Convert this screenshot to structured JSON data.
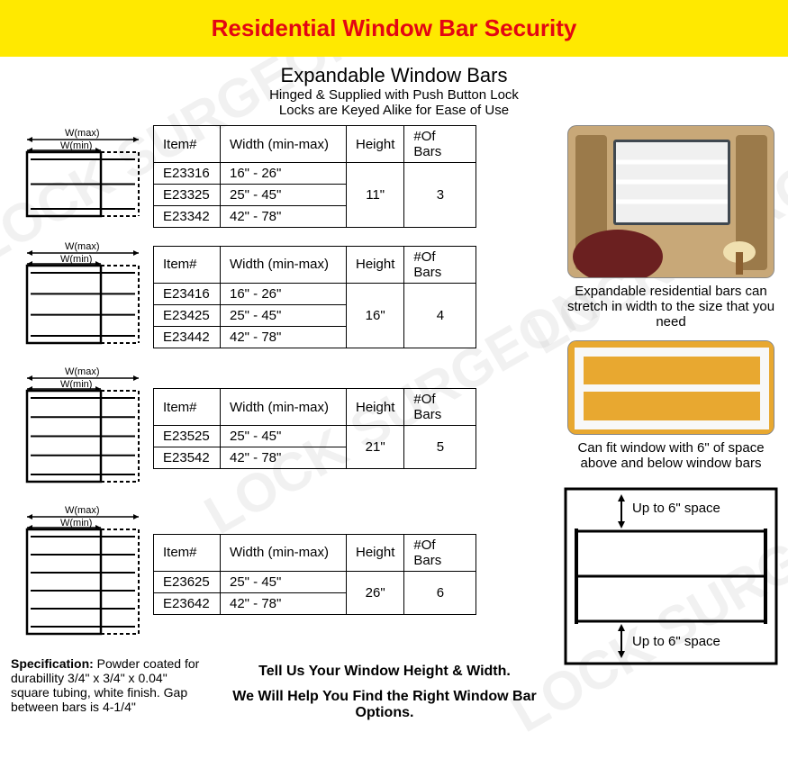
{
  "header": {
    "title": "Residential Window Bar Security"
  },
  "subtitle": {
    "main": "Expandable Window Bars",
    "line1": "Hinged & Supplied with Push Button Lock",
    "line2": "Locks are Keyed Alike for Ease of Use"
  },
  "table_headers": {
    "item": "Item#",
    "width": "Width (min-max)",
    "height": "Height",
    "bars": "#Of Bars"
  },
  "diagrams": {
    "wmax_label": "W(max)",
    "wmin_label": "W(min)",
    "stroke_color": "#000000",
    "stroke_width": 2
  },
  "products": [
    {
      "bars": 3,
      "height": "11\"",
      "rows": [
        {
          "item": "E23316",
          "width": "16\" - 26\""
        },
        {
          "item": "E23325",
          "width": "25\" - 45\""
        },
        {
          "item": "E23342",
          "width": "42\" - 78\""
        }
      ]
    },
    {
      "bars": 4,
      "height": "16\"",
      "rows": [
        {
          "item": "E23416",
          "width": "16\" - 26\""
        },
        {
          "item": "E23425",
          "width": "25\" - 45\""
        },
        {
          "item": "E23442",
          "width": "42\" - 78\""
        }
      ]
    },
    {
      "bars": 5,
      "height": "21\"",
      "rows": [
        {
          "item": "E23525",
          "width": "25\" - 45\""
        },
        {
          "item": "E23542",
          "width": "42\" - 78\""
        }
      ]
    },
    {
      "bars": 6,
      "height": "26\"",
      "rows": [
        {
          "item": "E23625",
          "width": "25\" - 45\""
        },
        {
          "item": "E23642",
          "width": "42\" - 78\""
        }
      ]
    }
  ],
  "right": {
    "caption1": "Expandable residential bars can stretch in width to the size that you need",
    "caption2": "Can fit window with 6\" of space above and below window bars",
    "space_label": "Up to 6\" space"
  },
  "spec": {
    "label": "Specification:",
    "text": " Powder coated for durabillity 3/4\" x 3/4\" x 0.04\" square tubing, white finish. Gap between bars is 4-1/4\""
  },
  "cta": {
    "line1": "Tell Us Your Window Height & Width.",
    "line2": "We Will Help You Find the Right Window Bar Options."
  },
  "watermark_text": "LOCK SURGEON",
  "colors": {
    "header_bg": "#ffe900",
    "header_text": "#e30613",
    "border": "#000000"
  }
}
